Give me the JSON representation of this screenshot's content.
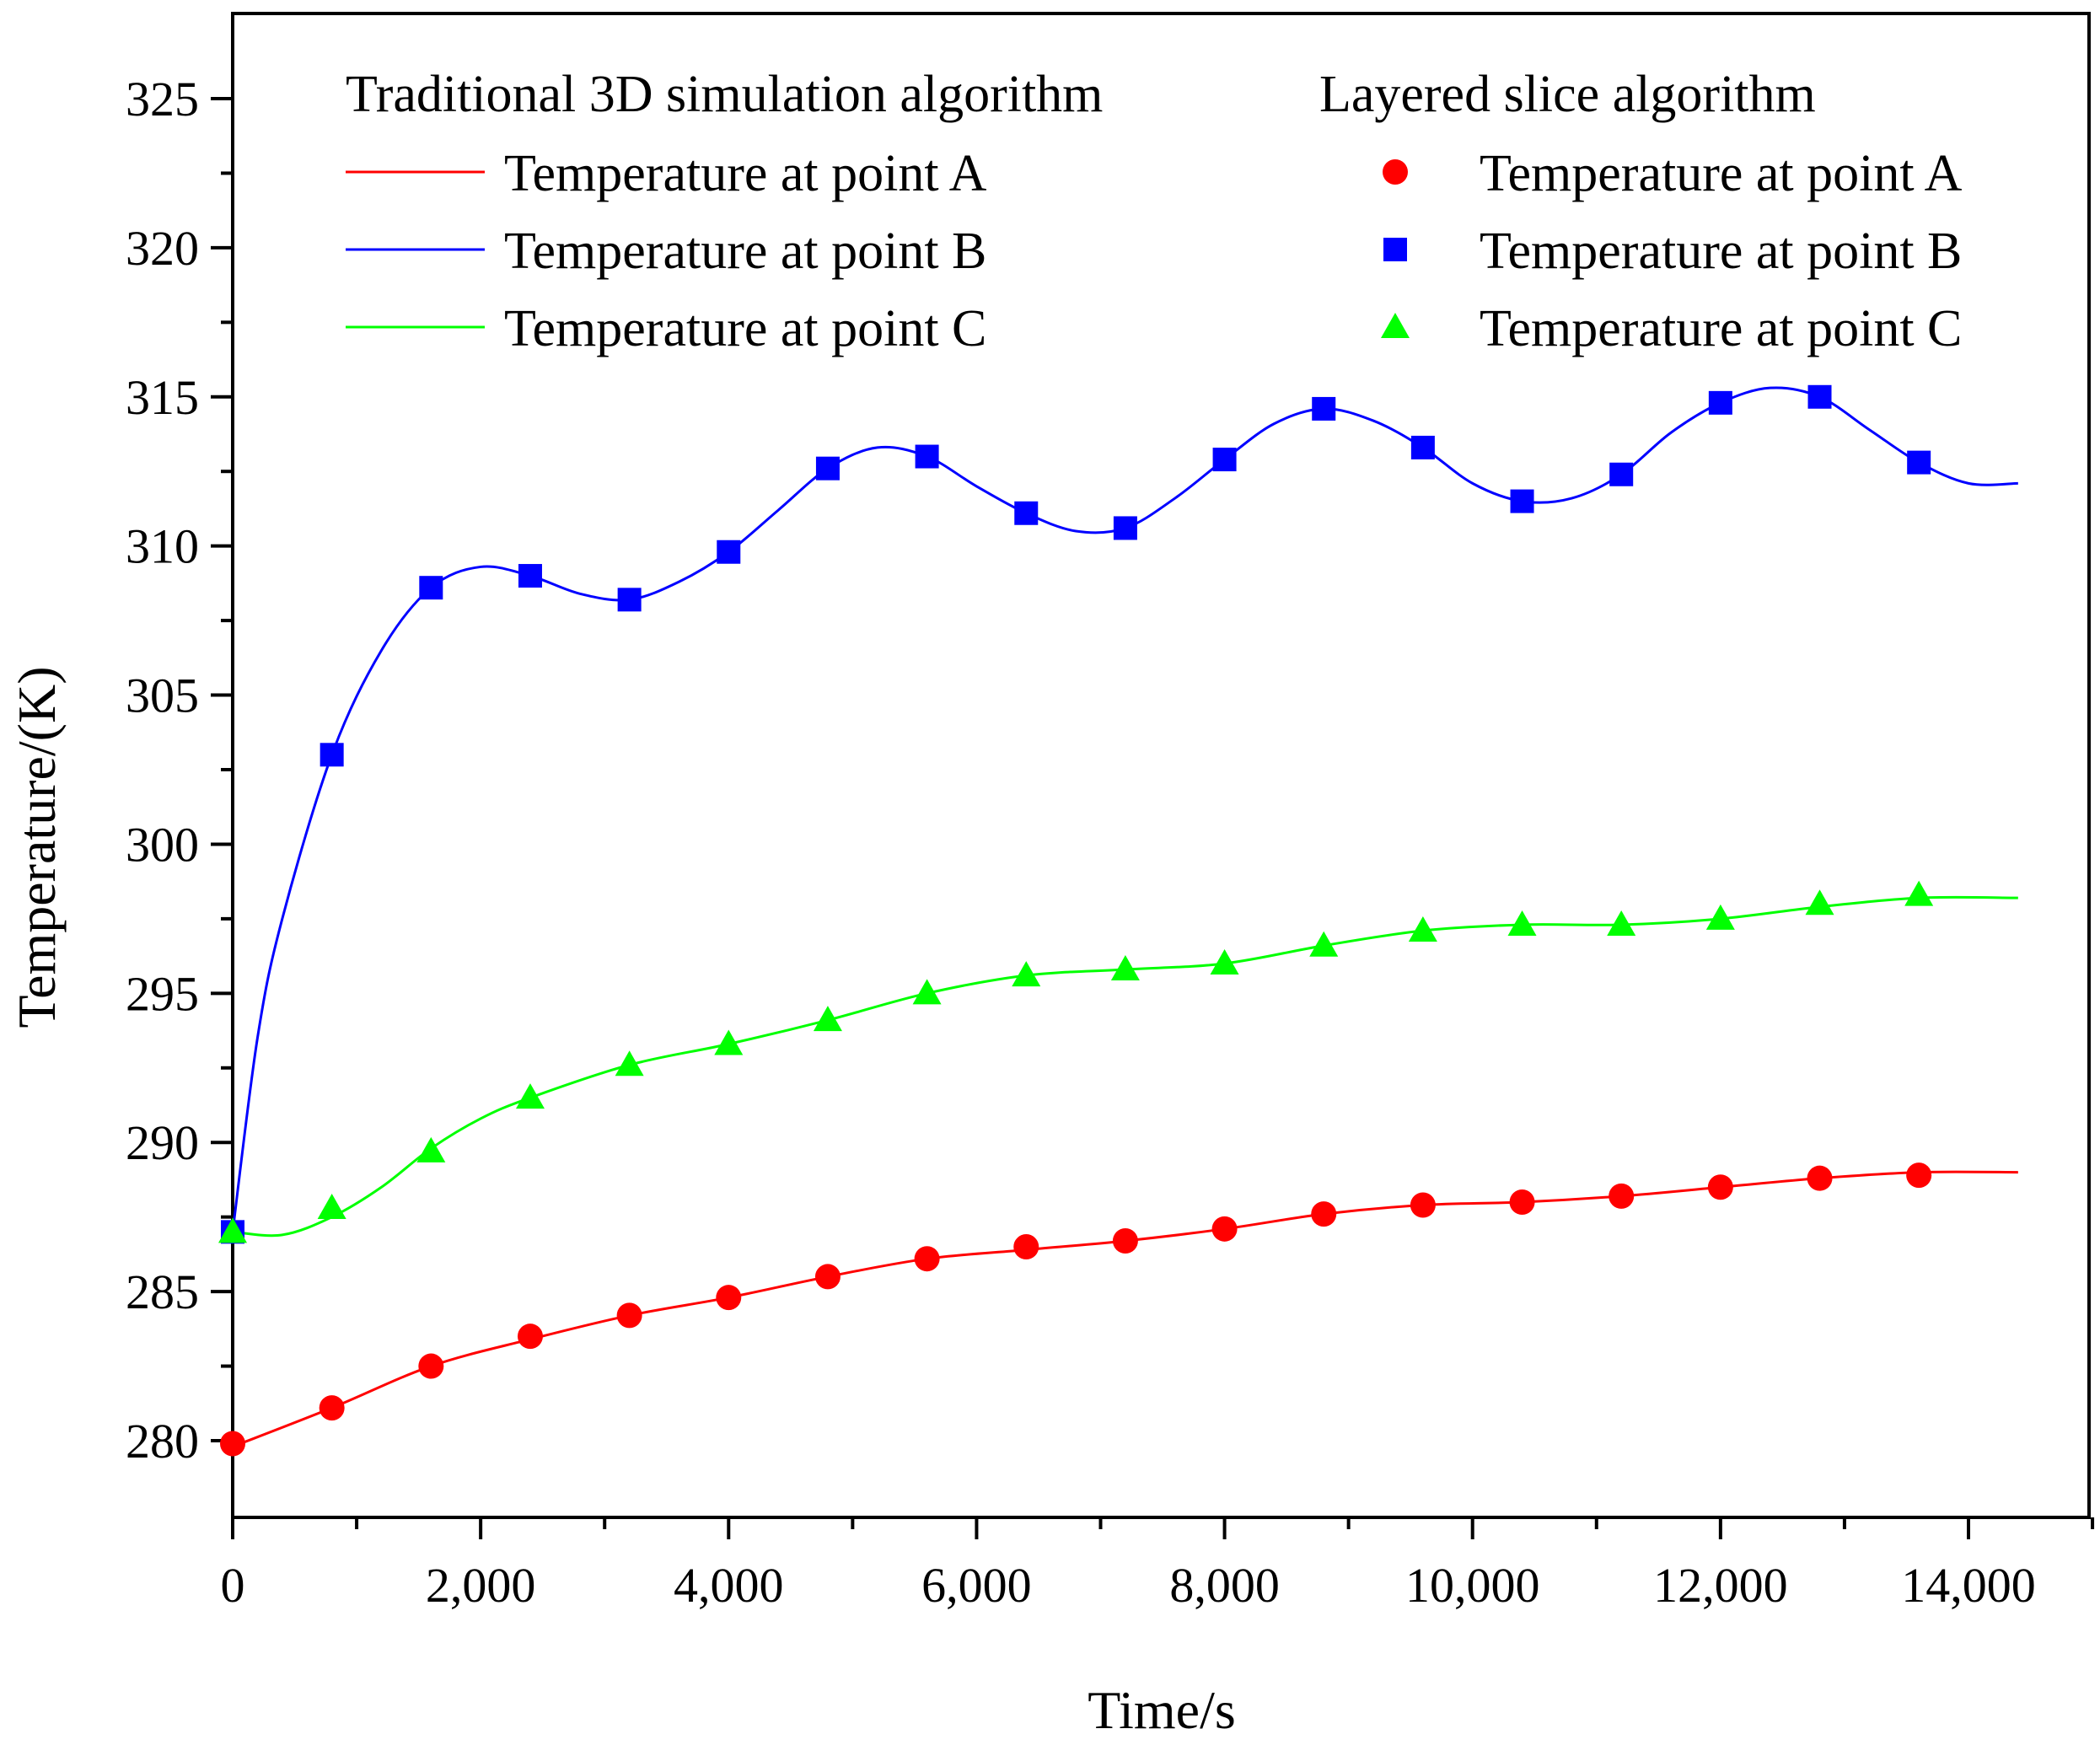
{
  "chart_data": {
    "type": "line",
    "xlabel": "Time/s",
    "ylabel": "Temperature/(K)",
    "xlim": [
      0,
      15000
    ],
    "ylim": [
      277.5,
      327.5
    ],
    "x_ticks": [
      0,
      2000,
      4000,
      6000,
      8000,
      10000,
      12000,
      14000
    ],
    "x_tick_labels": [
      "0",
      "2,000",
      "4,000",
      "6,000",
      "8,000",
      "10,000",
      "12,000",
      "14,000"
    ],
    "y_ticks": [
      280,
      285,
      290,
      295,
      300,
      305,
      310,
      315,
      320,
      325
    ],
    "y_tick_labels": [
      "280",
      "285",
      "290",
      "295",
      "300",
      "305",
      "310",
      "315",
      "320",
      "325"
    ],
    "legend": {
      "group_line_title": "Traditional 3D simulation algorithm",
      "group_marker_title": "Layered slice algorithm",
      "placement": "top"
    },
    "series": [
      {
        "name": "Temperature at point A",
        "color": "#ff0000",
        "marker": "circle",
        "markers": {
          "x": [
            0,
            800,
            1600,
            2400,
            3200,
            4000,
            4800,
            5600,
            6400,
            7200,
            8000,
            8800,
            9600,
            10400,
            11200,
            12000,
            12800,
            13600
          ],
          "y": [
            279.9,
            281.1,
            282.5,
            283.5,
            284.2,
            284.8,
            285.5,
            286.1,
            286.5,
            286.7,
            287.1,
            287.6,
            287.9,
            288.0,
            288.2,
            288.5,
            288.8,
            288.9
          ]
        },
        "line": {
          "x": [
            0,
            800,
            1600,
            2400,
            3200,
            4000,
            4800,
            5600,
            6400,
            7200,
            8000,
            8800,
            9600,
            10400,
            11200,
            12000,
            12800,
            13600,
            14400
          ],
          "y": [
            279.8,
            281.1,
            282.5,
            283.4,
            284.2,
            284.8,
            285.5,
            286.1,
            286.4,
            286.7,
            287.1,
            287.6,
            287.9,
            288.0,
            288.2,
            288.5,
            288.8,
            289.0,
            289.0
          ]
        }
      },
      {
        "name": "Temperature at point B",
        "color": "#0000ff",
        "marker": "square",
        "markers": {
          "x": [
            0,
            800,
            1600,
            2400,
            3200,
            4000,
            4800,
            5600,
            6400,
            7200,
            8000,
            8800,
            9600,
            10400,
            11200,
            12000,
            12800,
            13600
          ],
          "y": [
            287.0,
            303.0,
            308.6,
            309.0,
            308.2,
            309.8,
            312.6,
            313.0,
            311.1,
            310.6,
            312.9,
            314.6,
            313.3,
            311.5,
            312.4,
            314.8,
            315.0,
            312.8
          ]
        },
        "line": {
          "x": [
            0,
            200,
            400,
            800,
            1200,
            1600,
            2000,
            2400,
            2800,
            3200,
            3600,
            4000,
            4400,
            4800,
            5200,
            5600,
            6000,
            6400,
            6800,
            7200,
            7600,
            8000,
            8400,
            8800,
            9200,
            9600,
            10000,
            10400,
            10800,
            11200,
            11600,
            12000,
            12400,
            12800,
            13200,
            13600,
            14000,
            14400
          ],
          "y": [
            287.0,
            293.5,
            297.5,
            303.0,
            306.5,
            308.6,
            309.3,
            309.0,
            308.4,
            308.2,
            308.8,
            309.8,
            311.2,
            312.6,
            313.3,
            313.0,
            312.0,
            311.1,
            310.5,
            310.6,
            311.6,
            312.9,
            314.1,
            314.6,
            314.2,
            313.3,
            312.1,
            311.5,
            311.6,
            312.4,
            313.8,
            314.8,
            315.3,
            315.0,
            313.9,
            312.8,
            312.1,
            312.1
          ]
        }
      },
      {
        "name": "Temperature at point C",
        "color": "#00ff00",
        "marker": "triangle",
        "markers": {
          "x": [
            0,
            800,
            1600,
            2400,
            3200,
            4000,
            4800,
            5600,
            6400,
            7200,
            8000,
            8800,
            9600,
            10400,
            11200,
            12000,
            12800,
            13600
          ],
          "y": [
            287.0,
            287.8,
            289.7,
            291.5,
            292.6,
            293.3,
            294.1,
            295.0,
            295.6,
            295.8,
            296.0,
            296.6,
            297.1,
            297.3,
            297.3,
            297.5,
            298.0,
            298.3
          ]
        },
        "line": {
          "x": [
            0,
            400,
            800,
            1200,
            1600,
            2000,
            2400,
            3200,
            4000,
            4800,
            5600,
            6400,
            7200,
            8000,
            8800,
            9600,
            10400,
            11200,
            12000,
            12800,
            13600,
            14400
          ],
          "y": [
            287.0,
            286.9,
            287.5,
            288.5,
            289.8,
            290.8,
            291.5,
            292.6,
            293.3,
            294.1,
            295.0,
            295.6,
            295.8,
            296.0,
            296.6,
            297.1,
            297.3,
            297.3,
            297.5,
            297.9,
            298.2,
            298.2
          ]
        }
      }
    ]
  }
}
